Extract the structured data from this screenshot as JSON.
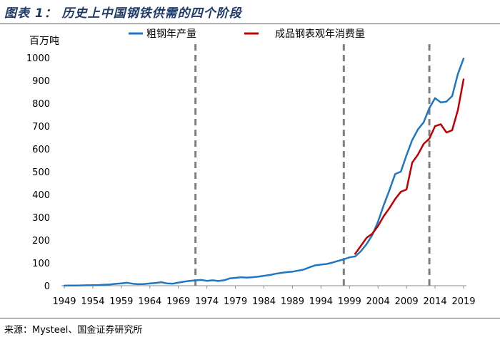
{
  "figure": {
    "title": "图表 1：  历史上中国钢铁供需的四个阶段",
    "source": "来源：Mysteel、国金证券研究所"
  },
  "chart_data": {
    "type": "line",
    "title": "历史上中国钢铁供需的四个阶段",
    "ylabel": "百万吨",
    "xlabel": "",
    "xlim": [
      1949,
      2019
    ],
    "ylim": [
      0,
      1000
    ],
    "yticks": [
      0,
      100,
      200,
      300,
      400,
      500,
      600,
      700,
      800,
      900,
      1000
    ],
    "xticks": [
      1949,
      1954,
      1959,
      1964,
      1969,
      1974,
      1979,
      1984,
      1989,
      1994,
      1999,
      2004,
      2009,
      2014,
      2019
    ],
    "legend_position": "top",
    "divider_years": [
      1972,
      1998,
      2013
    ],
    "series": [
      {
        "name": "粗钢年产量",
        "color": "#1f77c4",
        "x": [
          1949,
          1950,
          1951,
          1952,
          1953,
          1954,
          1955,
          1956,
          1957,
          1958,
          1959,
          1960,
          1961,
          1962,
          1963,
          1964,
          1965,
          1966,
          1967,
          1968,
          1969,
          1970,
          1971,
          1972,
          1973,
          1974,
          1975,
          1976,
          1977,
          1978,
          1979,
          1980,
          1981,
          1982,
          1983,
          1984,
          1985,
          1986,
          1987,
          1988,
          1989,
          1990,
          1991,
          1992,
          1993,
          1994,
          1995,
          1996,
          1997,
          1998,
          1999,
          2000,
          2001,
          2002,
          2003,
          2004,
          2005,
          2006,
          2007,
          2008,
          2009,
          2010,
          2011,
          2012,
          2013,
          2014,
          2015,
          2016,
          2017,
          2018,
          2019
        ],
        "values": [
          0.2,
          0.6,
          0.9,
          1.4,
          1.8,
          2.2,
          2.9,
          4.5,
          5.4,
          8.0,
          10.0,
          13.0,
          8.7,
          6.7,
          7.6,
          9.6,
          12.2,
          15.3,
          10.3,
          9.0,
          13.3,
          17.8,
          21.3,
          23.4,
          25.2,
          21.1,
          23.9,
          20.5,
          23.7,
          31.8,
          34.5,
          37.1,
          35.6,
          37.2,
          40.0,
          43.5,
          46.8,
          52.2,
          56.3,
          59.4,
          61.6,
          66.4,
          71.0,
          80.9,
          89.5,
          92.6,
          95.4,
          101.2,
          108.9,
          115.6,
          124.3,
          128.5,
          151.6,
          182.4,
          222.3,
          280.5,
          353.2,
          419.1,
          489.3,
          500.3,
          572.2,
          638.7,
          685.3,
          716.5,
          779.0,
          822.7,
          803.8,
          807.6,
          831.7,
          928.3,
          996.3
        ]
      },
      {
        "name": "成品钢表观年消费量",
        "color": "#c00000",
        "x": [
          2000,
          2001,
          2002,
          2003,
          2004,
          2005,
          2006,
          2007,
          2008,
          2009,
          2010,
          2011,
          2012,
          2013,
          2014,
          2015,
          2016,
          2017,
          2018,
          2019
        ],
        "values": [
          140,
          175,
          210,
          228,
          262,
          305,
          340,
          380,
          412,
          422,
          540,
          575,
          622,
          645,
          700,
          708,
          672,
          682,
          770,
          905
        ]
      }
    ]
  }
}
